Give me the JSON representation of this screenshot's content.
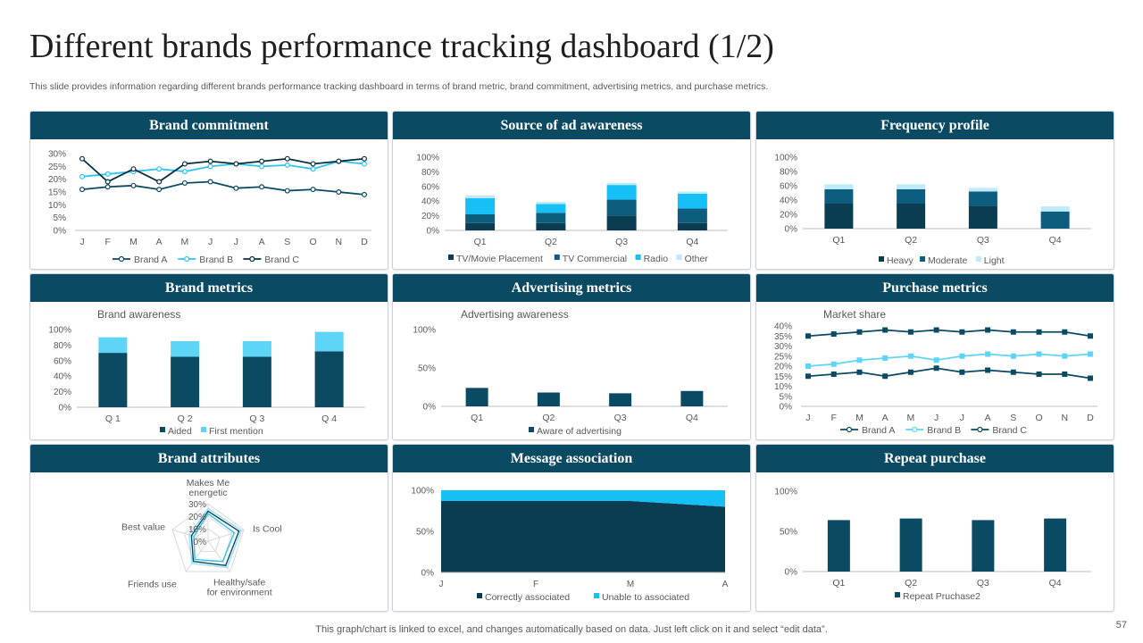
{
  "page": {
    "title": "Different brands performance tracking dashboard (1/2)",
    "subtitle": "This slide provides information regarding different brands performance tracking dashboard in terms of brand metric, brand commitment, advertising metrics, and purchase metrics.",
    "footer": "This graph/chart is linked to excel,  and changes automatically based on data. Just left click on it and select “edit data”.",
    "page_number": "57"
  },
  "colors": {
    "header": "#0b4a63",
    "dark": "#0a3d52",
    "mid": "#0d5d7e",
    "bright": "#16bff5",
    "light": "#5ed4f7",
    "pale": "#bfeafb"
  },
  "chart_data": [
    {
      "id": "brand_commitment",
      "panel_title": "Brand commitment",
      "type": "line",
      "categories": [
        "J",
        "F",
        "M",
        "A",
        "M",
        "J",
        "J",
        "A",
        "S",
        "O",
        "N",
        "D"
      ],
      "y_ticks": [
        "30%",
        "25%",
        "20%",
        "15%",
        "10%",
        "5%",
        "0%"
      ],
      "ylim": [
        0,
        30
      ],
      "series": [
        {
          "name": "Brand A",
          "color": "#0b4a63",
          "values": [
            16,
            17,
            17.5,
            16,
            18.5,
            19,
            16.5,
            17,
            15.5,
            16,
            15,
            14
          ]
        },
        {
          "name": "Brand B",
          "color": "#2ec4f0",
          "values": [
            21,
            22,
            23,
            24,
            23,
            25,
            26,
            25,
            25.5,
            24,
            27,
            26
          ]
        },
        {
          "name": "Brand C",
          "color": "#082f40",
          "values": [
            28,
            19,
            24,
            19,
            26,
            27,
            26,
            27,
            28,
            26,
            27,
            28
          ]
        }
      ]
    },
    {
      "id": "source_ad_awareness",
      "panel_title": "Source of ad awareness",
      "type": "bar",
      "stacked": true,
      "categories": [
        "Q1",
        "Q2",
        "Q3",
        "Q4"
      ],
      "y_ticks": [
        "100%",
        "80%",
        "60%",
        "40%",
        "20%",
        "0%"
      ],
      "ylim": [
        0,
        100
      ],
      "series": [
        {
          "name": "TV/Movie Placement",
          "color": "#0a3d52",
          "values": [
            10,
            10,
            20,
            10
          ]
        },
        {
          "name": "TV Commercial",
          "color": "#0d5d7e",
          "values": [
            12,
            14,
            22,
            20
          ]
        },
        {
          "name": "Radio",
          "color": "#16bff5",
          "values": [
            22,
            12,
            20,
            20
          ]
        },
        {
          "name": "Other",
          "color": "#bfeafb",
          "values": [
            4,
            3,
            3,
            3
          ]
        }
      ]
    },
    {
      "id": "frequency_profile",
      "panel_title": "Frequency profile",
      "type": "bar",
      "stacked": true,
      "categories": [
        "Q1",
        "Q2",
        "Q3",
        "Q4"
      ],
      "y_ticks": [
        "100%",
        "80%",
        "60%",
        "40%",
        "20%",
        "0%"
      ],
      "ylim": [
        0,
        100
      ],
      "series": [
        {
          "name": "Heavy",
          "color": "#0a3d52",
          "values": [
            35,
            35,
            32,
            0
          ]
        },
        {
          "name": "Moderate",
          "color": "#0d5d7e",
          "values": [
            20,
            20,
            20,
            24
          ]
        },
        {
          "name": "Light",
          "color": "#bfeafb",
          "values": [
            7,
            7,
            5,
            7
          ]
        }
      ]
    },
    {
      "id": "brand_metrics",
      "panel_title": "Brand metrics",
      "type": "bar",
      "stacked": true,
      "subtitle": "Brand awareness",
      "categories": [
        "Q 1",
        "Q 2",
        "Q 3",
        "Q 4"
      ],
      "y_ticks": [
        "100%",
        "80%",
        "60%",
        "40%",
        "20%",
        "0%"
      ],
      "ylim": [
        0,
        100
      ],
      "series": [
        {
          "name": "Aided",
          "color": "#0b4a63",
          "values": [
            70,
            65,
            65,
            72
          ]
        },
        {
          "name": "First mention",
          "color": "#5ed4f7",
          "values": [
            20,
            20,
            20,
            25
          ]
        }
      ]
    },
    {
      "id": "advertising_metrics",
      "panel_title": "Advertising metrics",
      "type": "bar",
      "subtitle": "Advertising awareness",
      "categories": [
        "Q1",
        "Q2",
        "Q3",
        "Q4"
      ],
      "y_ticks": [
        "100%",
        "50%",
        "0%"
      ],
      "ylim": [
        0,
        100
      ],
      "series": [
        {
          "name": "Aware of advertising",
          "color": "#0b4a63",
          "values": [
            24,
            18,
            17,
            20
          ]
        }
      ]
    },
    {
      "id": "purchase_metrics",
      "panel_title": "Purchase metrics",
      "type": "line",
      "subtitle": "Market share",
      "categories": [
        "J",
        "F",
        "M",
        "A",
        "M",
        "J",
        "J",
        "A",
        "S",
        "O",
        "N",
        "D"
      ],
      "y_ticks": [
        "40%",
        "35%",
        "30%",
        "25%",
        "20%",
        "15%",
        "10%",
        "5%",
        "0%"
      ],
      "ylim": [
        0,
        40
      ],
      "series": [
        {
          "name": "Brand A",
          "color": "#0b4a63",
          "values": [
            35,
            36,
            37,
            38,
            37,
            38,
            37,
            38,
            37,
            37,
            37,
            35
          ]
        },
        {
          "name": "Brand B",
          "color": "#5ed4f7",
          "values": [
            20,
            21,
            23,
            24,
            25,
            23,
            25,
            26,
            25,
            26,
            25,
            26
          ]
        },
        {
          "name": "Brand C",
          "color": "#0b4a63",
          "values": [
            15,
            16,
            17,
            15,
            17,
            19,
            17,
            18,
            17,
            16,
            16,
            14
          ]
        }
      ]
    },
    {
      "id": "brand_attributes",
      "panel_title": "Brand attributes",
      "type": "radar",
      "axes": [
        "Makes Me energetic",
        "Is Cool",
        "Healthy/safe for environment",
        "Friends use",
        "Best value"
      ],
      "r_ticks": [
        "30%",
        "20%",
        "10%",
        "0%"
      ],
      "rlim": [
        0,
        30
      ],
      "series": [
        {
          "name": "Brand A",
          "color": "#0b4a63",
          "values": [
            24,
            26,
            24,
            20,
            14
          ]
        },
        {
          "name": "Brand B",
          "color": "#2ec4f0",
          "values": [
            22,
            22,
            20,
            18,
            12
          ]
        },
        {
          "name": "Brand C",
          "color": "#9adff7",
          "values": [
            26,
            28,
            26,
            22,
            16
          ]
        }
      ]
    },
    {
      "id": "message_association",
      "panel_title": "Message association",
      "type": "area",
      "stacked": true,
      "categories": [
        "J",
        "F",
        "M",
        "A"
      ],
      "y_ticks": [
        "100%",
        "50%",
        "0%"
      ],
      "ylim": [
        0,
        100
      ],
      "series": [
        {
          "name": "Correctly associated",
          "color": "#0a3d52",
          "values": [
            87,
            87,
            87,
            80
          ]
        },
        {
          "name": "Unable to associated",
          "color": "#16bff5",
          "values": [
            13,
            13,
            13,
            20
          ]
        }
      ]
    },
    {
      "id": "repeat_purchase",
      "panel_title": "Repeat purchase",
      "type": "bar",
      "categories": [
        "Q1",
        "Q2",
        "Q3",
        "Q4"
      ],
      "y_ticks": [
        "100%",
        "50%",
        "0%"
      ],
      "ylim": [
        0,
        100
      ],
      "series": [
        {
          "name": "Repeat Pruchase2",
          "color": "#0b4a63",
          "values": [
            64,
            66,
            64,
            66
          ]
        }
      ]
    }
  ]
}
